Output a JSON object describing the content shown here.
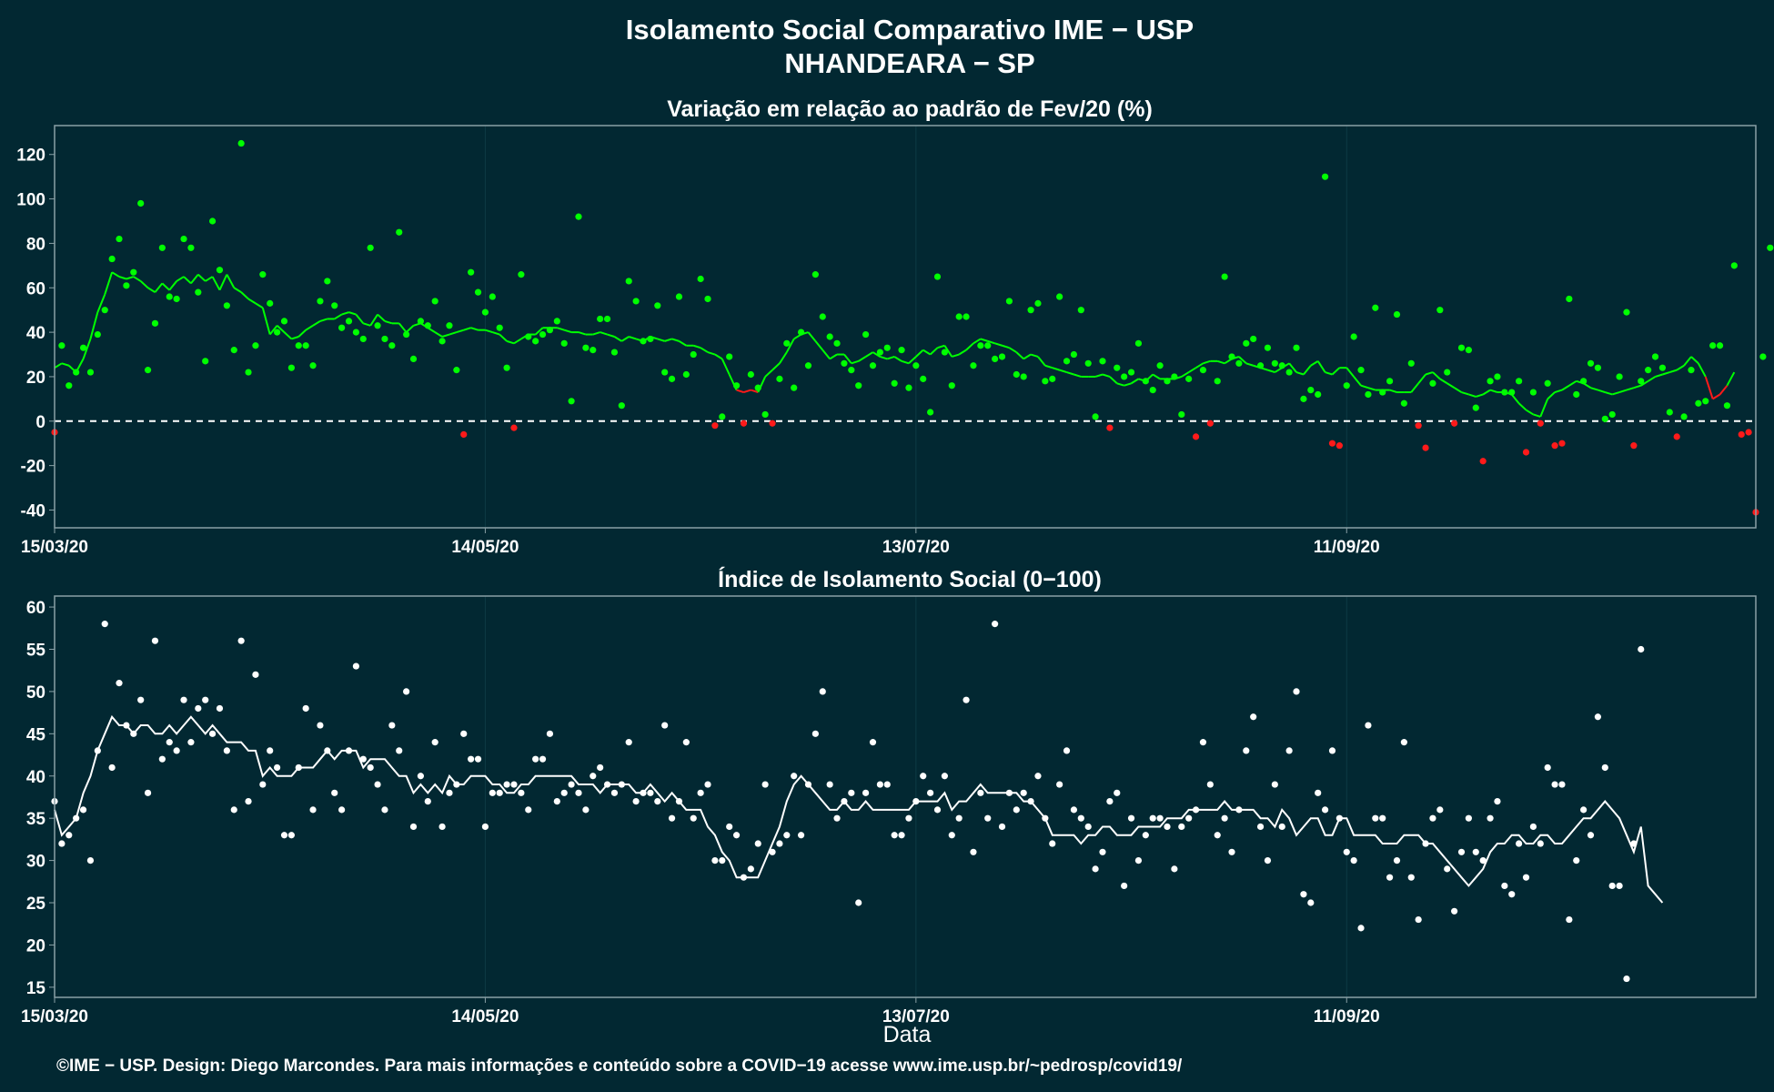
{
  "page": {
    "title": "Isolamento Social Comparativo IME − USP",
    "subtitle": "NHANDEARA − SP",
    "xlabel": "Data",
    "footer": "©IME − USP. Design: Diego Marcondes. Para mais informações e conteúdo sobre a COVID−19 acesse www.ime.usp.br/~pedrosp/covid19/"
  },
  "colors": {
    "background": "#022832",
    "panel_border": "#8aa0a6",
    "grid": "#0d3a44",
    "positive": "#00ff00",
    "negative": "#ff1a1a",
    "index": "#ffffff",
    "text": "#ffffff"
  },
  "chart_data": [
    {
      "type": "scatter",
      "title": "Variação em relação ao padrão de Fev/20 (%)",
      "xlabel": "Data",
      "ylabel": "",
      "x_start": "15/03/20",
      "x_ticks": [
        {
          "label": "15/03/20",
          "day": 0
        },
        {
          "label": "14/05/20",
          "day": 60
        },
        {
          "label": "13/07/20",
          "day": 120
        },
        {
          "label": "11/09/20",
          "day": 180
        }
      ],
      "y_ticks": [
        120,
        100,
        80,
        60,
        40,
        20,
        0,
        -20,
        -40
      ],
      "ylim": [
        -48,
        133
      ],
      "xlim": [
        0,
        237
      ],
      "reference_line": 0,
      "values": [
        -5,
        34,
        16,
        22,
        33,
        22,
        39,
        50,
        73,
        82,
        61,
        67,
        98,
        23,
        44,
        78,
        56,
        55,
        82,
        78,
        58,
        27,
        90,
        68,
        52,
        32,
        125,
        22,
        34,
        66,
        53,
        40,
        45,
        24,
        34,
        34,
        25,
        54,
        63,
        52,
        42,
        45,
        40,
        37,
        78,
        43,
        37,
        34,
        85,
        39,
        28,
        45,
        43,
        54,
        36,
        43,
        23,
        -6,
        67,
        58,
        49,
        56,
        42,
        24,
        -3,
        66,
        38,
        36,
        39,
        41,
        45,
        35,
        9,
        92,
        33,
        32,
        46,
        46,
        31,
        7,
        63,
        54,
        36,
        37,
        52,
        22,
        19,
        56,
        21,
        30,
        64,
        55,
        -2,
        2,
        29,
        16,
        -1,
        21,
        15,
        3,
        -1,
        19,
        35,
        15,
        40,
        25,
        66,
        47,
        38,
        35,
        26,
        23,
        16,
        39,
        25,
        31,
        33,
        17,
        32,
        15,
        25,
        19,
        4,
        65,
        31,
        16,
        47,
        47,
        25,
        34,
        34,
        28,
        29,
        54,
        21,
        20,
        50,
        53,
        18,
        19,
        56,
        27,
        30,
        50,
        26,
        2,
        27,
        -3,
        24,
        20,
        22,
        35,
        18,
        14,
        25,
        18,
        20,
        3,
        19,
        -7,
        23,
        -1,
        18,
        65,
        29,
        26,
        35,
        37,
        25,
        33,
        26,
        25,
        22,
        33,
        10,
        14,
        12,
        110,
        -10,
        -11,
        16,
        38,
        23,
        12,
        51,
        13,
        18,
        48,
        8,
        26,
        -2,
        -12,
        17,
        50,
        22,
        -1,
        33,
        32,
        6,
        -18,
        18,
        20,
        13,
        13,
        18,
        -14,
        13,
        -1,
        17,
        -11,
        -10,
        55,
        12,
        18,
        26,
        24,
        1,
        3,
        20,
        49,
        -11,
        18,
        23,
        29,
        24,
        4,
        -7,
        2,
        23,
        8,
        9,
        34,
        34,
        7,
        70,
        -6,
        -5,
        -41,
        29,
        78
      ],
      "moving_average": [
        24,
        26,
        25,
        22,
        28,
        37,
        49,
        57,
        67,
        65,
        64,
        65,
        63,
        60,
        58,
        62,
        59,
        63,
        65,
        62,
        66,
        63,
        65,
        59,
        66,
        60,
        58,
        55,
        53,
        51,
        39,
        43,
        40,
        37,
        38,
        41,
        43,
        45,
        46,
        46,
        48,
        49,
        48,
        44,
        43,
        48,
        45,
        44,
        44,
        40,
        43,
        44,
        42,
        40,
        38,
        39,
        40,
        41,
        42,
        41,
        41,
        40,
        39,
        36,
        35,
        37,
        39,
        39,
        42,
        42,
        42,
        41,
        40,
        40,
        39,
        39,
        40,
        39,
        38,
        36,
        38,
        37,
        36,
        38,
        37,
        36,
        37,
        36,
        34,
        34,
        33,
        31,
        30,
        28,
        21,
        14,
        13,
        14,
        13,
        20,
        23,
        26,
        31,
        37,
        39,
        40,
        36,
        32,
        28,
        30,
        30,
        26,
        27,
        29,
        31,
        29,
        28,
        29,
        27,
        26,
        29,
        32,
        30,
        33,
        34,
        29,
        30,
        32,
        35,
        37,
        36,
        35,
        34,
        33,
        31,
        28,
        30,
        29,
        25,
        24,
        23,
        22,
        21,
        20,
        20,
        20,
        21,
        20,
        17,
        16,
        17,
        19,
        18,
        21,
        19,
        19,
        19,
        20,
        22,
        24,
        26,
        27,
        27,
        26,
        28,
        29,
        26,
        25,
        24,
        23,
        22,
        24,
        26,
        22,
        21,
        25,
        27,
        22,
        21,
        24,
        24,
        20,
        16,
        15,
        14,
        14,
        14,
        13,
        13,
        13,
        17,
        21,
        22,
        19,
        17,
        15,
        13,
        12,
        11,
        12,
        14,
        13,
        13,
        12,
        8,
        5,
        3,
        2,
        10,
        13,
        14,
        16,
        18,
        17,
        15,
        14,
        13,
        12,
        13,
        14,
        15,
        16,
        18,
        20,
        21,
        22,
        23,
        25,
        29,
        26,
        20,
        10,
        12,
        16,
        22
      ]
    },
    {
      "type": "scatter",
      "title": "Índice de Isolamento Social (0−100)",
      "xlabel": "Data",
      "ylabel": "",
      "x_start": "15/03/20",
      "x_ticks": [
        {
          "label": "15/03/20",
          "day": 0
        },
        {
          "label": "14/05/20",
          "day": 60
        },
        {
          "label": "13/07/20",
          "day": 120
        },
        {
          "label": "11/09/20",
          "day": 180
        }
      ],
      "y_ticks": [
        60,
        55,
        50,
        45,
        40,
        35,
        30,
        25,
        20,
        15
      ],
      "ylim": [
        13.8,
        61.3
      ],
      "xlim": [
        0,
        237
      ],
      "values": [
        37,
        32,
        33,
        35,
        36,
        30,
        43,
        58,
        41,
        51,
        46,
        45,
        49,
        38,
        56,
        42,
        44,
        43,
        49,
        44,
        48,
        49,
        45,
        48,
        43,
        36,
        56,
        37,
        52,
        39,
        43,
        41,
        33,
        33,
        41,
        48,
        36,
        46,
        43,
        38,
        36,
        43,
        53,
        42,
        41,
        39,
        36,
        46,
        43,
        50,
        34,
        40,
        37,
        44,
        34,
        38,
        39,
        45,
        42,
        42,
        34,
        38,
        38,
        39,
        39,
        38,
        36,
        42,
        42,
        45,
        37,
        38,
        39,
        38,
        36,
        40,
        41,
        39,
        38,
        39,
        44,
        37,
        38,
        38,
        37,
        46,
        35,
        37,
        44,
        35,
        38,
        39,
        30,
        30,
        34,
        33,
        28,
        29,
        32,
        39,
        31,
        32,
        33,
        40,
        33,
        39,
        45,
        50,
        39,
        35,
        37,
        38,
        25,
        38,
        44,
        39,
        39,
        33,
        33,
        35,
        37,
        40,
        38,
        36,
        40,
        33,
        35,
        49,
        31,
        38,
        35,
        58,
        34,
        38,
        36,
        38,
        37,
        40,
        35,
        32,
        39,
        43,
        36,
        35,
        34,
        29,
        31,
        37,
        38,
        27,
        35,
        30,
        33,
        35,
        35,
        34,
        29,
        34,
        35,
        36,
        44,
        39,
        33,
        35,
        31,
        36,
        43,
        47,
        34,
        30,
        39,
        34,
        43,
        50,
        26,
        25,
        38,
        36,
        43,
        35,
        31,
        30,
        22,
        46,
        35,
        35,
        28,
        30,
        44,
        28,
        23,
        32,
        35,
        36,
        29,
        24,
        31,
        35,
        31,
        30,
        35,
        37,
        27,
        26,
        32,
        28,
        34,
        32,
        41,
        39,
        39,
        23,
        30,
        36,
        33,
        47,
        41,
        27,
        27,
        16,
        32,
        55
      ],
      "moving_average": [
        36,
        33,
        34,
        35,
        38,
        40,
        43,
        45,
        47,
        46,
        46,
        45,
        46,
        46,
        45,
        45,
        46,
        45,
        46,
        47,
        46,
        45,
        46,
        45,
        44,
        44,
        44,
        43,
        43,
        40,
        41,
        40,
        40,
        40,
        41,
        41,
        41,
        42,
        43,
        42,
        43,
        43,
        43,
        41,
        42,
        42,
        42,
        41,
        40,
        40,
        38,
        39,
        38,
        39,
        38,
        40,
        39,
        39,
        40,
        40,
        40,
        39,
        39,
        38,
        38,
        39,
        39,
        40,
        40,
        40,
        40,
        40,
        40,
        39,
        39,
        39,
        38,
        39,
        39,
        39,
        39,
        38,
        38,
        39,
        38,
        37,
        38,
        37,
        36,
        36,
        36,
        34,
        33,
        31,
        30,
        28,
        28,
        28,
        28,
        30,
        32,
        34,
        37,
        39,
        40,
        39,
        38,
        37,
        36,
        36,
        37,
        36,
        36,
        37,
        36,
        36,
        36,
        36,
        36,
        36,
        37,
        37,
        37,
        37,
        38,
        36,
        37,
        37,
        38,
        39,
        38,
        38,
        38,
        38,
        38,
        37,
        37,
        36,
        35,
        33,
        33,
        33,
        33,
        32,
        33,
        33,
        34,
        34,
        33,
        33,
        33,
        34,
        34,
        34,
        34,
        35,
        35,
        35,
        36,
        36,
        36,
        36,
        36,
        37,
        36,
        36,
        36,
        36,
        35,
        35,
        34,
        36,
        35,
        33,
        34,
        35,
        35,
        33,
        33,
        35,
        35,
        33,
        33,
        33,
        33,
        32,
        32,
        32,
        33,
        33,
        33,
        32,
        32,
        31,
        30,
        29,
        28,
        27,
        28,
        29,
        31,
        32,
        32,
        33,
        33,
        32,
        32,
        33,
        33,
        32,
        32,
        33,
        34,
        35,
        35,
        36,
        37,
        36,
        35,
        33,
        31,
        34,
        27,
        26,
        25
      ]
    }
  ]
}
